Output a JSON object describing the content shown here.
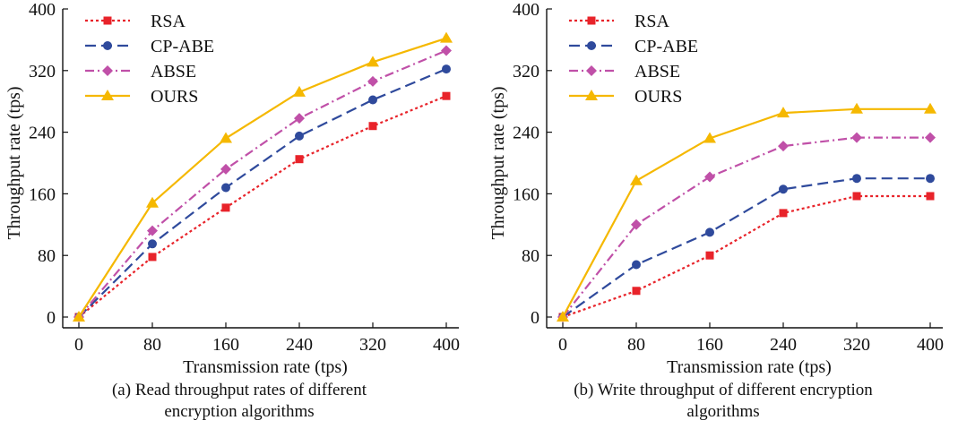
{
  "chart_data": [
    {
      "type": "line",
      "title": "",
      "caption": "(a) Read throughput rates of different\nencryption algorithms",
      "xlabel": "Transmission rate (tps)",
      "ylabel": "Throughput rate (tps)",
      "x": [
        0,
        80,
        160,
        240,
        320,
        400
      ],
      "xticks": [
        "0",
        "80",
        "160",
        "240",
        "320",
        "400"
      ],
      "yticks": [
        "0",
        "80",
        "160",
        "240",
        "320",
        "400"
      ],
      "xlim": [
        0,
        400
      ],
      "ylim": [
        0,
        400
      ],
      "legend_position": "top-left",
      "series": [
        {
          "name": "RSA",
          "color": "#e8232a",
          "dash": "3,3",
          "marker": "square",
          "values": [
            0,
            78,
            142,
            205,
            248,
            287
          ]
        },
        {
          "name": "CP-ABE",
          "color": "#2f4a9c",
          "dash": "12,6",
          "marker": "circle",
          "values": [
            0,
            95,
            168,
            235,
            282,
            322
          ]
        },
        {
          "name": "ABSE",
          "color": "#c050a8",
          "dash": "10,4,2,4",
          "marker": "diamond",
          "values": [
            0,
            112,
            192,
            258,
            306,
            346
          ]
        },
        {
          "name": "OURS",
          "color": "#f5b800",
          "dash": "",
          "marker": "triangle",
          "values": [
            0,
            148,
            232,
            292,
            331,
            362
          ]
        }
      ]
    },
    {
      "type": "line",
      "title": "",
      "caption": "(b) Write throughput of different encryption\nalgorithms",
      "xlabel": "Transmission rate (tps)",
      "ylabel": "Throughput rate (tps)",
      "x": [
        0,
        80,
        160,
        240,
        320,
        400
      ],
      "xticks": [
        "0",
        "80",
        "160",
        "240",
        "320",
        "400"
      ],
      "yticks": [
        "0",
        "80",
        "160",
        "240",
        "320",
        "400"
      ],
      "xlim": [
        0,
        400
      ],
      "ylim": [
        0,
        400
      ],
      "legend_position": "top-left",
      "series": [
        {
          "name": "RSA",
          "color": "#e8232a",
          "dash": "3,3",
          "marker": "square",
          "values": [
            0,
            34,
            80,
            135,
            157,
            157
          ]
        },
        {
          "name": "CP-ABE",
          "color": "#2f4a9c",
          "dash": "12,6",
          "marker": "circle",
          "values": [
            0,
            68,
            110,
            166,
            180,
            180
          ]
        },
        {
          "name": "ABSE",
          "color": "#c050a8",
          "dash": "10,4,2,4",
          "marker": "diamond",
          "values": [
            0,
            120,
            182,
            222,
            233,
            233
          ]
        },
        {
          "name": "OURS",
          "color": "#f5b800",
          "dash": "",
          "marker": "triangle",
          "values": [
            0,
            177,
            232,
            265,
            270,
            270
          ]
        }
      ]
    }
  ]
}
